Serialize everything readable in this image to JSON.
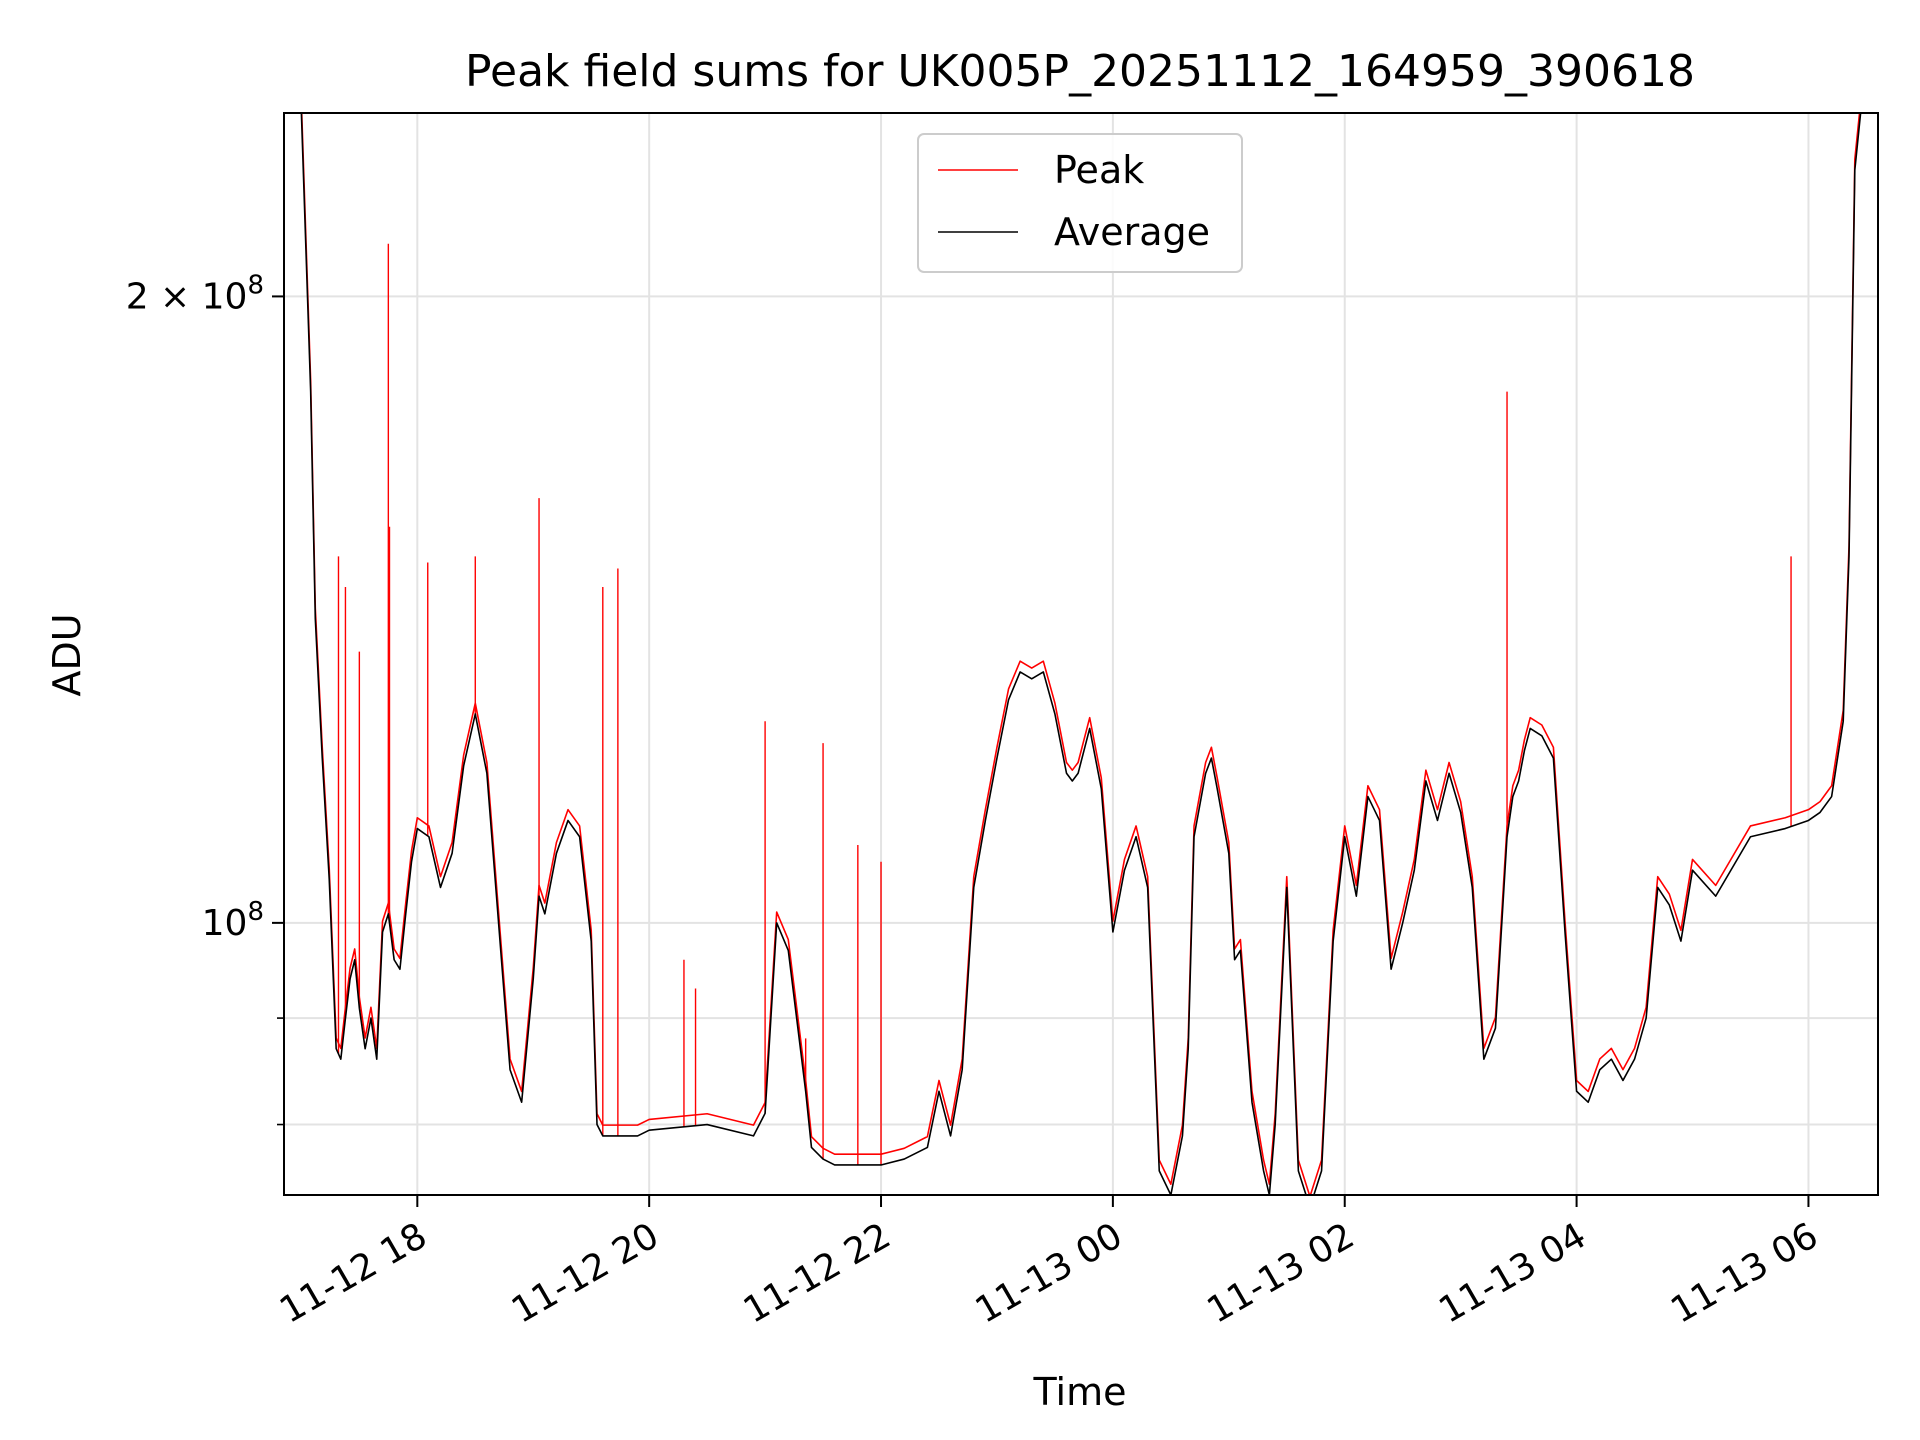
{
  "chart_data": {
    "type": "line",
    "title": "Peak field sums for UK005P_20251112_164959_390618",
    "xlabel": "Time",
    "ylabel": "ADU",
    "yscale": "log",
    "ylim": [
      74000000,
      245000000
    ],
    "xlim_hours": [
      -1.15,
      12.6
    ],
    "grid": true,
    "x_tick_labels": [
      "11-12 18",
      "11-12 20",
      "11-12 22",
      "11-13 00",
      "11-13 02",
      "11-13 04",
      "11-13 06"
    ],
    "x_tick_hours": [
      0,
      2,
      4,
      6,
      8,
      10,
      12
    ],
    "y_major_ticks": [
      {
        "value": 100000000,
        "label": "10^8",
        "base": "10",
        "exp": "8"
      },
      {
        "value": 200000000,
        "label": "2 × 10^8",
        "base": "2 × 10",
        "exp": "8"
      }
    ],
    "y_minor_ticks": [
      80000000,
      90000000
    ],
    "legend": {
      "location": "upper-center",
      "entries": [
        {
          "label": "Peak",
          "color": "#ff0000"
        },
        {
          "label": "Average",
          "color": "#000000"
        }
      ]
    },
    "series": [
      {
        "name": "Average",
        "color": "#000000",
        "x_hours": [
          -1.0,
          -0.92,
          -0.88,
          -0.82,
          -0.76,
          -0.7,
          -0.66,
          -0.62,
          -0.58,
          -0.54,
          -0.5,
          -0.45,
          -0.4,
          -0.35,
          -0.3,
          -0.25,
          -0.2,
          -0.15,
          -0.1,
          -0.05,
          0.0,
          0.1,
          0.2,
          0.3,
          0.4,
          0.5,
          0.6,
          0.8,
          0.9,
          1.0,
          1.05,
          1.1,
          1.2,
          1.3,
          1.4,
          1.5,
          1.55,
          1.6,
          1.7,
          1.8,
          1.9,
          2.0,
          2.5,
          2.9,
          3.0,
          3.1,
          3.2,
          3.35,
          3.4,
          3.5,
          3.6,
          4.0,
          4.2,
          4.4,
          4.5,
          4.6,
          4.7,
          4.8,
          4.9,
          5.0,
          5.1,
          5.2,
          5.3,
          5.4,
          5.5,
          5.6,
          5.65,
          5.7,
          5.8,
          5.9,
          6.0,
          6.1,
          6.2,
          6.3,
          6.4,
          6.5,
          6.6,
          6.65,
          6.7,
          6.8,
          6.85,
          6.9,
          7.0,
          7.05,
          7.1,
          7.2,
          7.3,
          7.35,
          7.4,
          7.5,
          7.6,
          7.7,
          7.8,
          7.9,
          8.0,
          8.1,
          8.2,
          8.3,
          8.4,
          8.5,
          8.6,
          8.7,
          8.8,
          8.9,
          9.0,
          9.1,
          9.2,
          9.3,
          9.4,
          9.45,
          9.5,
          9.55,
          9.6,
          9.7,
          9.8,
          9.9,
          10.0,
          10.1,
          10.2,
          10.3,
          10.4,
          10.5,
          10.6,
          10.7,
          10.8,
          10.9,
          11.0,
          11.2,
          11.5,
          11.8,
          12.0,
          12.1,
          12.2,
          12.3,
          12.35,
          12.4,
          12.45
        ],
        "values": [
          245000000,
          180000000,
          140000000,
          120000000,
          105000000,
          87000000,
          86000000,
          90000000,
          94000000,
          96000000,
          91000000,
          87000000,
          90000000,
          86000000,
          99000000,
          101000000,
          96000000,
          95000000,
          101000000,
          107000000,
          111000000,
          110000000,
          104000000,
          108000000,
          119000000,
          126000000,
          118000000,
          85000000,
          82000000,
          94000000,
          103000000,
          101000000,
          108000000,
          112000000,
          110000000,
          98000000,
          80000000,
          79000000,
          79000000,
          79000000,
          79000000,
          79500000,
          80000000,
          79000000,
          81000000,
          100000000,
          97000000,
          83000000,
          78000000,
          77000000,
          76500000,
          76500000,
          77000000,
          78000000,
          83000000,
          79000000,
          85000000,
          104000000,
          112000000,
          120000000,
          128000000,
          132000000,
          131000000,
          132000000,
          126000000,
          118000000,
          117000000,
          118000000,
          124000000,
          116000000,
          99000000,
          106000000,
          110000000,
          104000000,
          76000000,
          74000000,
          79000000,
          87000000,
          110000000,
          118000000,
          120000000,
          116000000,
          108000000,
          96000000,
          97000000,
          82000000,
          76000000,
          74000000,
          80000000,
          104000000,
          76000000,
          73000000,
          76000000,
          98000000,
          110000000,
          103000000,
          115000000,
          112000000,
          95000000,
          100000000,
          106000000,
          117000000,
          112000000,
          118000000,
          113000000,
          104000000,
          86000000,
          89000000,
          110000000,
          115000000,
          117000000,
          121000000,
          124000000,
          123000000,
          120000000,
          99000000,
          83000000,
          82000000,
          85000000,
          86000000,
          84000000,
          86000000,
          90000000,
          104000000,
          102000000,
          98000000,
          106000000,
          103000000,
          110000000,
          111000000,
          112000000,
          113000000,
          115000000,
          125000000,
          150000000,
          230000000,
          245000000
        ]
      },
      {
        "name": "Peak",
        "color": "#ff0000",
        "note": "Peak tracks the average closely; visible excursions listed as spikes",
        "spikes": [
          {
            "x_hours": -0.68,
            "value": 150000000
          },
          {
            "x_hours": -0.62,
            "value": 145000000
          },
          {
            "x_hours": -0.5,
            "value": 135000000
          },
          {
            "x_hours": -0.25,
            "value": 212000000
          },
          {
            "x_hours": -0.24,
            "value": 155000000
          },
          {
            "x_hours": 0.09,
            "value": 149000000
          },
          {
            "x_hours": 0.5,
            "value": 150000000
          },
          {
            "x_hours": 1.05,
            "value": 160000000
          },
          {
            "x_hours": 1.6,
            "value": 145000000
          },
          {
            "x_hours": 1.73,
            "value": 148000000
          },
          {
            "x_hours": 2.3,
            "value": 96000000
          },
          {
            "x_hours": 2.4,
            "value": 93000000
          },
          {
            "x_hours": 3.0,
            "value": 125000000
          },
          {
            "x_hours": 3.5,
            "value": 122000000
          },
          {
            "x_hours": 3.8,
            "value": 109000000
          },
          {
            "x_hours": 4.0,
            "value": 107000000
          },
          {
            "x_hours": 3.35,
            "value": 88000000
          },
          {
            "x_hours": 9.4,
            "value": 180000000
          },
          {
            "x_hours": 11.85,
            "value": 150000000
          }
        ]
      }
    ]
  }
}
